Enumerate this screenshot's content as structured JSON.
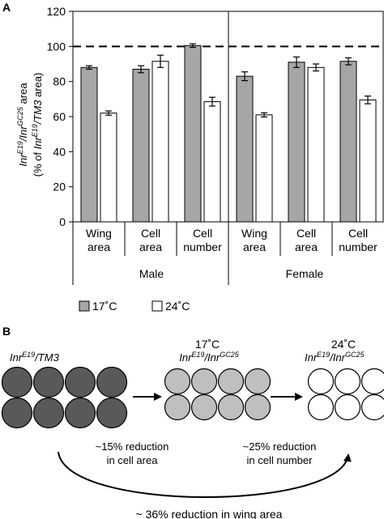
{
  "panel_a": {
    "label": "A",
    "ylabel_line1": "Inr",
    "ylabel_line1_sup1": "E19",
    "ylabel_line1_mid": "/Inr",
    "ylabel_line1_sup2": "GC25",
    "ylabel_line1_end": " area",
    "ylabel_line2_pre": "(% of ",
    "ylabel_line2_it": "Inr",
    "ylabel_line2_sup": "E19",
    "ylabel_line2_it2": "/TM3",
    "ylabel_line2_end": " area)",
    "sex_labels": [
      "Male",
      "Female"
    ],
    "legend": [
      {
        "label": "17˚C",
        "color": "#a6a6a6"
      },
      {
        "label": "24˚C",
        "color": "#ffffff"
      }
    ]
  },
  "chart_data": {
    "type": "bar",
    "title": "",
    "ylim": [
      0,
      120
    ],
    "yticks": [
      0,
      20,
      40,
      60,
      80,
      100,
      120
    ],
    "reference_line": 100,
    "groups": [
      {
        "sex": "Male",
        "line1": "Wing",
        "line2": "area"
      },
      {
        "sex": "Male",
        "line1": "Cell",
        "line2": "area"
      },
      {
        "sex": "Male",
        "line1": "Cell",
        "line2": "number"
      },
      {
        "sex": "Female",
        "line1": "Wing",
        "line2": "area"
      },
      {
        "sex": "Female",
        "line1": "Cell",
        "line2": "area"
      },
      {
        "sex": "Female",
        "line1": "Cell",
        "line2": "number"
      }
    ],
    "series": [
      {
        "name": "17˚C",
        "color": "#a6a6a6",
        "values": [
          88,
          87,
          100.5,
          83,
          91,
          91.5
        ],
        "errors": [
          1,
          2,
          1,
          2.5,
          3,
          2
        ]
      },
      {
        "name": "24˚C",
        "color": "#ffffff",
        "values": [
          62,
          91.5,
          68.5,
          61,
          88,
          69.5
        ],
        "errors": [
          1.2,
          3.5,
          2.5,
          1.2,
          2,
          2.2
        ]
      }
    ]
  },
  "panel_b": {
    "label": "B",
    "stage1_genotype": "Inr",
    "stage1_sup": "E19",
    "stage1_rest": "/TM3",
    "stage2_temp": "17˚C",
    "stage2_genotype": "Inr",
    "stage2_sup1": "E19",
    "stage2_mid": "/Inr",
    "stage2_sup2": "GC25",
    "stage3_temp": "24˚C",
    "stage3_genotype": "Inr",
    "stage3_sup1": "E19",
    "stage3_mid": "/Inr",
    "stage3_sup2": "GC25",
    "note1_line1": "~15% reduction",
    "note1_line2": "in cell area",
    "note2_line1": "~25% reduction",
    "note2_line2": "in cell number",
    "bottom_note": "~ 36% reduction in wing area",
    "colors": {
      "dark": "#595959",
      "light": "#bfbfbf",
      "white": "#ffffff"
    }
  }
}
